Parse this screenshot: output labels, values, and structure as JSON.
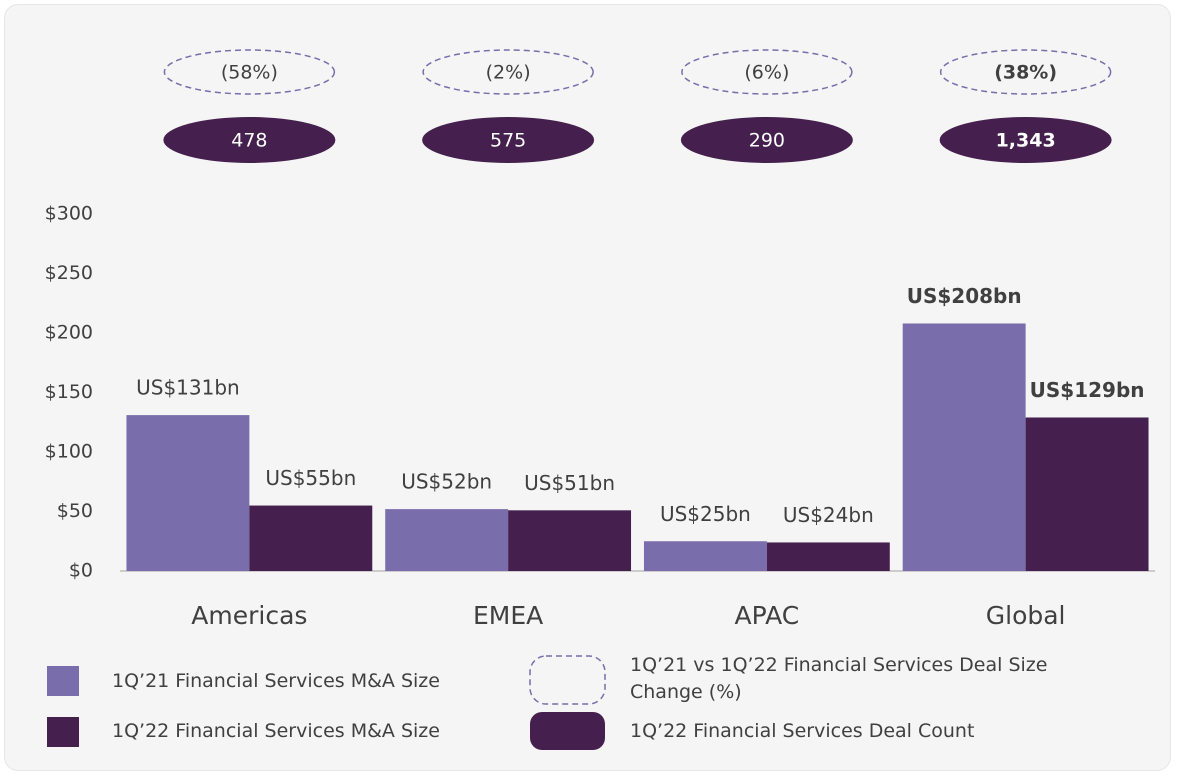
{
  "chart_data": {
    "type": "bar",
    "categories": [
      "Americas",
      "EMEA",
      "APAC",
      "Global"
    ],
    "series": [
      {
        "name": "1Q’21 Financial Services M&A Size",
        "color": "#7a6dab",
        "values": [
          131,
          52,
          25,
          208
        ],
        "value_labels": [
          "US$131bn",
          "US$52bn",
          "US$25bn",
          "US$208bn"
        ]
      },
      {
        "name": "1Q’22 Financial Services M&A Size",
        "color": "#45204e",
        "values": [
          55,
          51,
          24,
          129
        ],
        "value_labels": [
          "US$55bn",
          "US$51bn",
          "US$24bn",
          "US$129bn"
        ]
      }
    ],
    "deal_size_change": {
      "name": "1Q’21 vs 1Q’22 Financial Services Deal Size Change (%)",
      "color": "#7a6dab",
      "values": [
        -58,
        -2,
        -6,
        -38
      ],
      "value_labels": [
        "(58%)",
        "(2%)",
        "(6%)",
        "(38%)"
      ]
    },
    "deal_count": {
      "name": "1Q’22 Financial Services Deal Count",
      "color": "#45204e",
      "values": [
        478,
        575,
        290,
        1343
      ],
      "value_labels": [
        "478",
        "575",
        "290",
        "1,343"
      ]
    },
    "ylim": [
      0,
      300
    ],
    "yticks": [
      {
        "value": 0,
        "label": "$0"
      },
      {
        "value": 50,
        "label": "$50"
      },
      {
        "value": 100,
        "label": "$100"
      },
      {
        "value": 150,
        "label": "$150"
      },
      {
        "value": 200,
        "label": "$200"
      },
      {
        "value": 250,
        "label": "$250"
      },
      {
        "value": 300,
        "label": "$300"
      }
    ],
    "grid": false
  }
}
